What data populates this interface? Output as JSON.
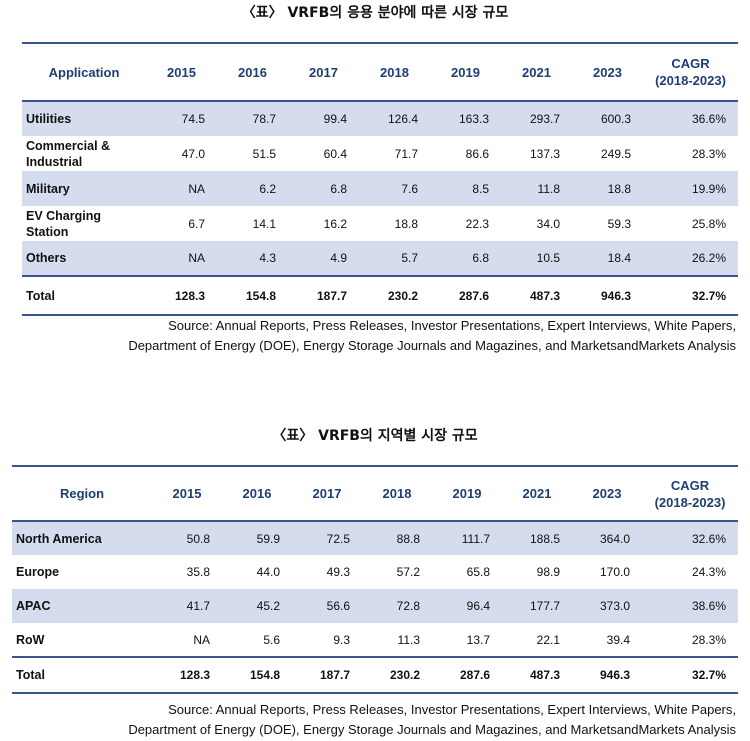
{
  "table1": {
    "title": "〈표〉 VRFB의 응용 분야에 따른 시장 규모",
    "headers": [
      "Application",
      "2015",
      "2016",
      "2017",
      "2018",
      "2019",
      "2021",
      "2023",
      "CAGR",
      "(2018-2023)"
    ],
    "rows": [
      {
        "label": "Utilities",
        "values": [
          "74.5",
          "78.7",
          "99.4",
          "126.4",
          "163.3",
          "293.7",
          "600.3",
          "36.6%"
        ]
      },
      {
        "label": "Commercial & Industrial",
        "values": [
          "47.0",
          "51.5",
          "60.4",
          "71.7",
          "86.6",
          "137.3",
          "249.5",
          "28.3%"
        ]
      },
      {
        "label": "Military",
        "values": [
          "NA",
          "6.2",
          "6.8",
          "7.6",
          "8.5",
          "11.8",
          "18.8",
          "19.9%"
        ]
      },
      {
        "label": "EV Charging Station",
        "values": [
          "6.7",
          "14.1",
          "16.2",
          "18.8",
          "22.3",
          "34.0",
          "59.3",
          "25.8%"
        ]
      },
      {
        "label": "Others",
        "values": [
          "NA",
          "4.3",
          "4.9",
          "5.7",
          "6.8",
          "10.5",
          "18.4",
          "26.2%"
        ]
      },
      {
        "label": "Total",
        "values": [
          "128.3",
          "154.8",
          "187.7",
          "230.2",
          "287.6",
          "487.3",
          "946.3",
          "32.7%"
        ]
      }
    ],
    "source_line1": "Source: Annual Reports, Press Releases, Investor Presentations, Expert Interviews, White Papers,",
    "source_line2": "Department of Energy (DOE), Energy Storage Journals and Magazines, and MarketsandMarkets Analysis"
  },
  "table2": {
    "title": "〈표〉 VRFB의 지역별 시장 규모",
    "headers": [
      "Region",
      "2015",
      "2016",
      "2017",
      "2018",
      "2019",
      "2021",
      "2023",
      "CAGR",
      "(2018-2023)"
    ],
    "rows": [
      {
        "label": "North America",
        "values": [
          "50.8",
          "59.9",
          "72.5",
          "88.8",
          "111.7",
          "188.5",
          "364.0",
          "32.6%"
        ]
      },
      {
        "label": "Europe",
        "values": [
          "35.8",
          "44.0",
          "49.3",
          "57.2",
          "65.8",
          "98.9",
          "170.0",
          "24.3%"
        ]
      },
      {
        "label": "APAC",
        "values": [
          "41.7",
          "45.2",
          "56.6",
          "72.8",
          "96.4",
          "177.7",
          "373.0",
          "38.6%"
        ]
      },
      {
        "label": "RoW",
        "values": [
          "NA",
          "5.6",
          "9.3",
          "11.3",
          "13.7",
          "22.1",
          "39.4",
          "28.3%"
        ]
      },
      {
        "label": "Total",
        "values": [
          "128.3",
          "154.8",
          "187.7",
          "230.2",
          "287.6",
          "487.3",
          "946.3",
          "32.7%"
        ]
      }
    ],
    "source_line1": "Source: Annual Reports, Press Releases, Investor Presentations, Expert Interviews, White Papers,",
    "source_line2": "Department of Energy (DOE), Energy Storage Journals and Magazines, and MarketsandMarkets Analysis"
  },
  "colors": {
    "header_text": "#1f3e74",
    "row_shade": "#d4dcee",
    "rule": "#39558c"
  }
}
